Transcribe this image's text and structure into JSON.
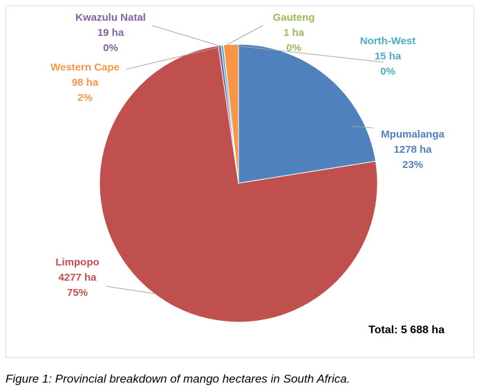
{
  "chart_data": {
    "type": "pie",
    "categories": [
      "Mpumalanga",
      "Limpopo",
      "Kwazulu Natal",
      "North-West",
      "Gauteng",
      "Western Cape"
    ],
    "values": [
      1278,
      4277,
      19,
      15,
      1,
      98
    ],
    "value_labels": [
      "1278 ha",
      "4277 ha",
      "19 ha",
      "15 ha",
      "1 ha",
      "98 ha"
    ],
    "percent_labels": [
      "23%",
      "75%",
      "0%",
      "0%",
      "0%",
      "2%"
    ],
    "colors": [
      "#4f81bd",
      "#c0504d",
      "#8064a2",
      "#4bacc6",
      "#9bbb59",
      "#f79646"
    ],
    "annotation": "Total: 5 688 ha"
  },
  "caption": "Figure 1: Provincial breakdown of mango hectares in South Africa."
}
